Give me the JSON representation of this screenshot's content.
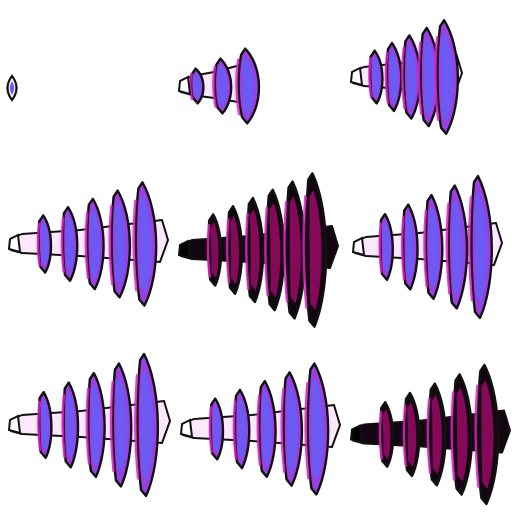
{
  "sprite_sheet": {
    "background": "#ffffff",
    "grid": {
      "rows": 3,
      "columns": 3
    },
    "palette": {
      "outline": "#111111",
      "blue": "#6a5cf4",
      "purple": "#9a3fe0",
      "magenta": "#e020c8",
      "pale": "#fbe8fb",
      "dark": "#140610",
      "dark_magenta": "#a00a6a"
    },
    "frames": [
      {
        "name": "frame-1",
        "variant": "tiny",
        "fins": 0,
        "energy": 0.05
      },
      {
        "name": "frame-2",
        "variant": "light",
        "fins": 3,
        "energy": 0.35
      },
      {
        "name": "frame-3",
        "variant": "light",
        "fins": 5,
        "energy": 0.6
      },
      {
        "name": "frame-4",
        "variant": "light",
        "fins": 5,
        "energy": 0.85
      },
      {
        "name": "frame-5",
        "variant": "dark",
        "fins": 6,
        "energy": 0.95
      },
      {
        "name": "frame-6",
        "variant": "light",
        "fins": 5,
        "energy": 0.9
      },
      {
        "name": "frame-7",
        "variant": "light",
        "fins": 5,
        "energy": 0.9
      },
      {
        "name": "frame-8",
        "variant": "light",
        "fins": 5,
        "energy": 0.8
      },
      {
        "name": "frame-9",
        "variant": "dark",
        "fins": 5,
        "energy": 0.95
      }
    ]
  }
}
